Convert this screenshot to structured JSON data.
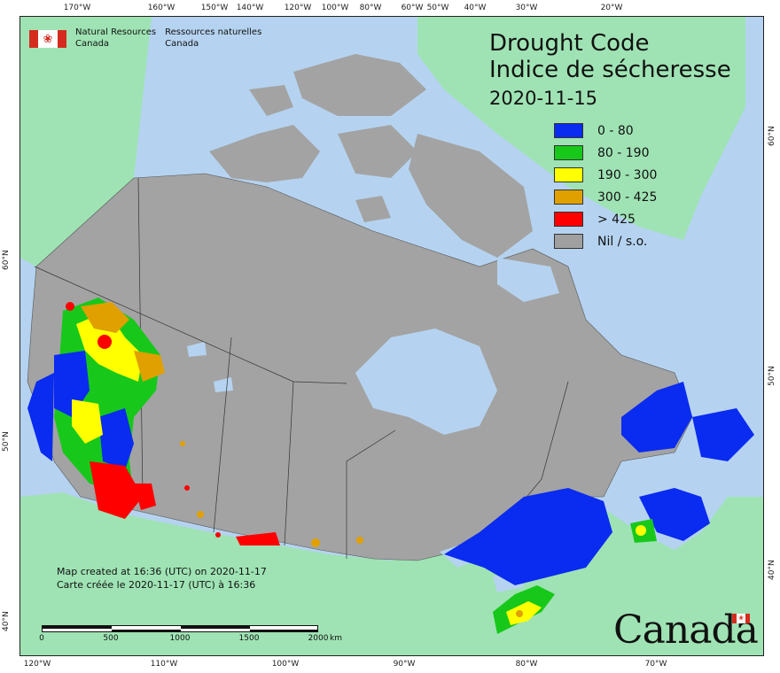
{
  "agency": {
    "name_en": "Natural Resources",
    "name_en_2": "Canada",
    "name_fr": "Ressources naturelles",
    "name_fr_2": "Canada"
  },
  "title": {
    "en": "Drought Code",
    "fr": "Indice de sécheresse",
    "date": "2020-11-15"
  },
  "legend": [
    {
      "label": "0 - 80",
      "color": "#0a2bf0"
    },
    {
      "label": "80 - 190",
      "color": "#17c81b"
    },
    {
      "label": "190 - 300",
      "color": "#ffff00"
    },
    {
      "label": "300 - 425",
      "color": "#e0a000"
    },
    {
      "label": "> 425",
      "color": "#ff0000"
    },
    {
      "label": "Nil / s.o.",
      "color": "#a0a0a0"
    }
  ],
  "colors": {
    "ocean": "#b5d3f0",
    "foreign_land": "#9fe3b4",
    "canada_land": "#a3a3a3",
    "lakes": "#b5d3f0"
  },
  "credit": {
    "en": "Map created at 16:36 (UTC) on 2020-11-17",
    "fr": "Carte créée le 2020-11-17 (UTC) à 16:36"
  },
  "scalebar": {
    "labels": [
      "0",
      "500",
      "1000",
      "1500",
      "2000"
    ],
    "unit": "km"
  },
  "wordmark": "Canada",
  "graticule": {
    "top": [
      "170°W",
      "160°W",
      "150°W",
      "140°W",
      "120°W",
      "100°W",
      "80°W",
      "60°W",
      "50°W",
      "40°W",
      "30°W",
      "20°W"
    ],
    "bottom": [
      "120°W",
      "110°W",
      "100°W",
      "90°W",
      "80°W",
      "70°W"
    ],
    "left": [
      "60°N",
      "50°N",
      "40°N"
    ],
    "right": [
      "60°N",
      "50°N",
      "40°N"
    ]
  }
}
